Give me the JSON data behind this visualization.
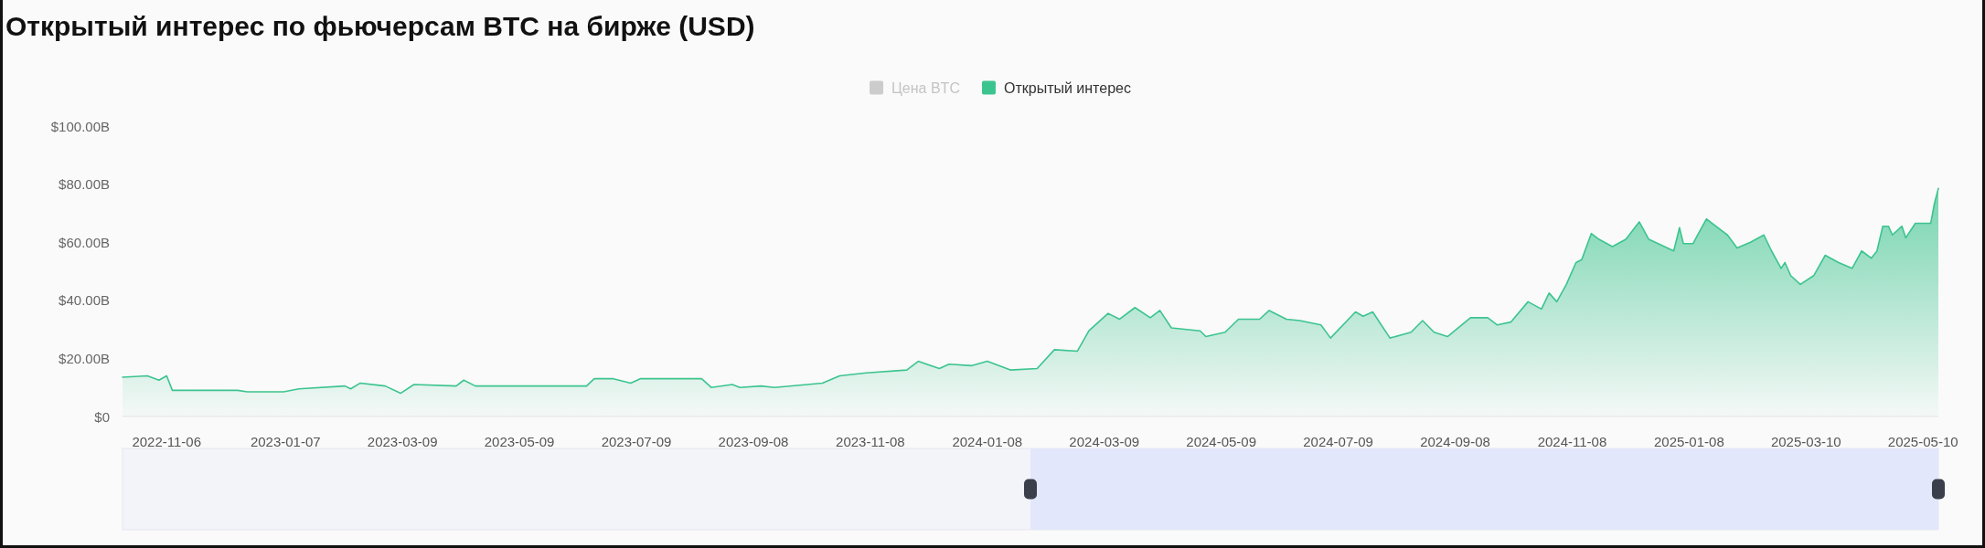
{
  "chart_data": {
    "type": "area",
    "title": "Открытый интерес по фьючерсам BTC на бирже (USD)",
    "x": [
      "2022-10-14",
      "2022-10-27",
      "2022-11-02",
      "2022-11-06",
      "2022-11-09",
      "2022-12-13",
      "2022-12-18",
      "2023-01-06",
      "2023-01-14",
      "2023-02-07",
      "2023-02-10",
      "2023-02-15",
      "2023-02-28",
      "2023-03-08",
      "2023-03-15",
      "2023-04-06",
      "2023-04-10",
      "2023-04-16",
      "2023-06-13",
      "2023-06-17",
      "2023-06-27",
      "2023-07-06",
      "2023-07-11",
      "2023-08-07",
      "2023-08-12",
      "2023-08-17",
      "2023-08-28",
      "2023-09-01",
      "2023-09-12",
      "2023-09-19",
      "2023-10-14",
      "2023-10-23",
      "2023-11-06",
      "2023-11-27",
      "2023-12-03",
      "2023-12-14",
      "2023-12-19",
      "2023-12-31",
      "2024-01-08",
      "2024-01-20",
      "2024-02-03",
      "2024-02-12",
      "2024-02-24",
      "2024-03-01",
      "2024-03-11",
      "2024-03-17",
      "2024-03-25",
      "2024-04-02",
      "2024-04-07",
      "2024-04-13",
      "2024-04-28",
      "2024-05-01",
      "2024-05-11",
      "2024-05-18",
      "2024-05-29",
      "2024-06-03",
      "2024-06-12",
      "2024-06-19",
      "2024-06-30",
      "2024-07-05",
      "2024-07-18",
      "2024-07-22",
      "2024-07-27",
      "2024-08-05",
      "2024-08-16",
      "2024-08-22",
      "2024-08-28",
      "2024-09-04",
      "2024-09-16",
      "2024-09-25",
      "2024-09-30",
      "2024-10-07",
      "2024-10-16",
      "2024-10-23",
      "2024-10-27",
      "2024-10-31",
      "2024-11-05",
      "2024-11-10",
      "2024-11-13",
      "2024-11-18",
      "2024-11-22",
      "2024-11-29",
      "2024-12-06",
      "2024-12-13",
      "2024-12-18",
      "2024-12-31",
      "2025-01-03",
      "2025-01-05",
      "2025-01-10",
      "2025-01-17",
      "2025-01-28",
      "2025-02-02",
      "2025-02-09",
      "2025-02-16",
      "2025-02-20",
      "2025-02-25",
      "2025-02-27",
      "2025-03-02",
      "2025-03-07",
      "2025-03-14",
      "2025-03-20",
      "2025-03-27",
      "2025-04-03",
      "2025-04-08",
      "2025-04-13",
      "2025-04-16",
      "2025-04-19",
      "2025-04-22",
      "2025-04-24",
      "2025-04-29",
      "2025-05-01",
      "2025-05-06",
      "2025-05-14",
      "2025-05-16",
      "2025-05-18"
    ],
    "series": [
      {
        "name": "Цена BTC",
        "color": "#cccccc",
        "values": [
          null,
          null,
          null,
          null,
          null,
          null,
          null,
          null,
          null,
          null,
          null,
          null,
          null,
          null,
          null,
          null,
          null,
          null,
          null,
          null,
          null,
          null,
          null,
          null,
          null,
          null,
          null,
          null,
          null,
          null,
          null,
          null,
          null,
          null,
          null,
          null,
          null,
          null,
          null,
          null,
          null,
          null,
          null,
          null,
          null,
          null,
          null,
          null,
          null,
          null,
          null,
          null,
          null,
          null,
          null,
          null,
          null,
          null,
          null,
          null,
          null,
          null,
          null,
          null,
          null,
          null,
          null,
          null,
          null,
          null,
          null,
          null,
          null,
          null,
          null,
          null,
          null,
          null,
          null,
          null,
          null,
          null,
          null,
          null,
          null,
          null,
          null,
          null,
          null,
          null,
          null,
          null,
          null,
          null,
          null,
          null,
          null,
          null,
          null,
          null,
          null,
          null,
          null,
          null,
          null,
          null,
          null,
          null,
          null,
          null,
          null,
          null,
          null,
          null,
          null
        ]
      },
      {
        "name": "Открытый интерес",
        "color": "#3cc48f",
        "values": [
          13.5,
          14,
          12.5,
          14,
          9,
          9,
          8.5,
          8.5,
          9.5,
          10.5,
          9.5,
          11.5,
          10.5,
          8,
          11,
          10.5,
          12.5,
          10.5,
          10.5,
          13,
          13,
          11.5,
          13,
          13,
          13,
          10,
          11,
          10,
          10.5,
          10,
          11.5,
          14,
          15,
          16,
          19,
          16.5,
          18,
          17.5,
          19,
          16,
          16.5,
          23,
          22.5,
          29.5,
          35.5,
          33.5,
          37.5,
          34,
          36.5,
          30.5,
          29.5,
          27.5,
          29,
          33.5,
          33.5,
          36.5,
          33.5,
          33,
          31.5,
          27,
          36,
          34.5,
          36,
          27,
          29,
          33,
          29,
          27.5,
          34,
          34,
          31.5,
          32.5,
          39.5,
          37,
          42.5,
          39.5,
          45.5,
          53,
          54,
          63,
          61,
          58.5,
          61,
          67,
          61,
          57,
          65,
          59.5,
          59.5,
          68,
          62.5,
          58,
          60,
          62.5,
          57,
          51,
          53,
          48.5,
          45.5,
          48.5,
          55.5,
          53,
          51,
          57,
          54.5,
          57,
          65.5,
          65.5,
          62.5,
          65.5,
          61.5,
          66.5,
          66.5,
          73.5,
          78.5
        ]
      }
    ],
    "xlim": [
      "2022-10-14",
      "2025-05-18"
    ],
    "xticks": [
      "2022-11-06",
      "2023-01-07",
      "2023-03-09",
      "2023-05-09",
      "2023-07-09",
      "2023-09-08",
      "2023-11-08",
      "2024-01-08",
      "2024-03-09",
      "2024-05-09",
      "2024-07-09",
      "2024-09-08",
      "2024-11-08",
      "2025-01-08",
      "2025-03-10",
      "2025-05-10"
    ],
    "ylim": [
      0,
      100
    ],
    "yticks": [
      {
        "value": 0,
        "label": "$0"
      },
      {
        "value": 20,
        "label": "$20.00B"
      },
      {
        "value": 40,
        "label": "$40.00B"
      },
      {
        "value": 60,
        "label": "$60.00B"
      },
      {
        "value": 80,
        "label": "$80.00B"
      },
      {
        "value": 100,
        "label": "$100.00B"
      }
    ],
    "legend": "top"
  }
}
